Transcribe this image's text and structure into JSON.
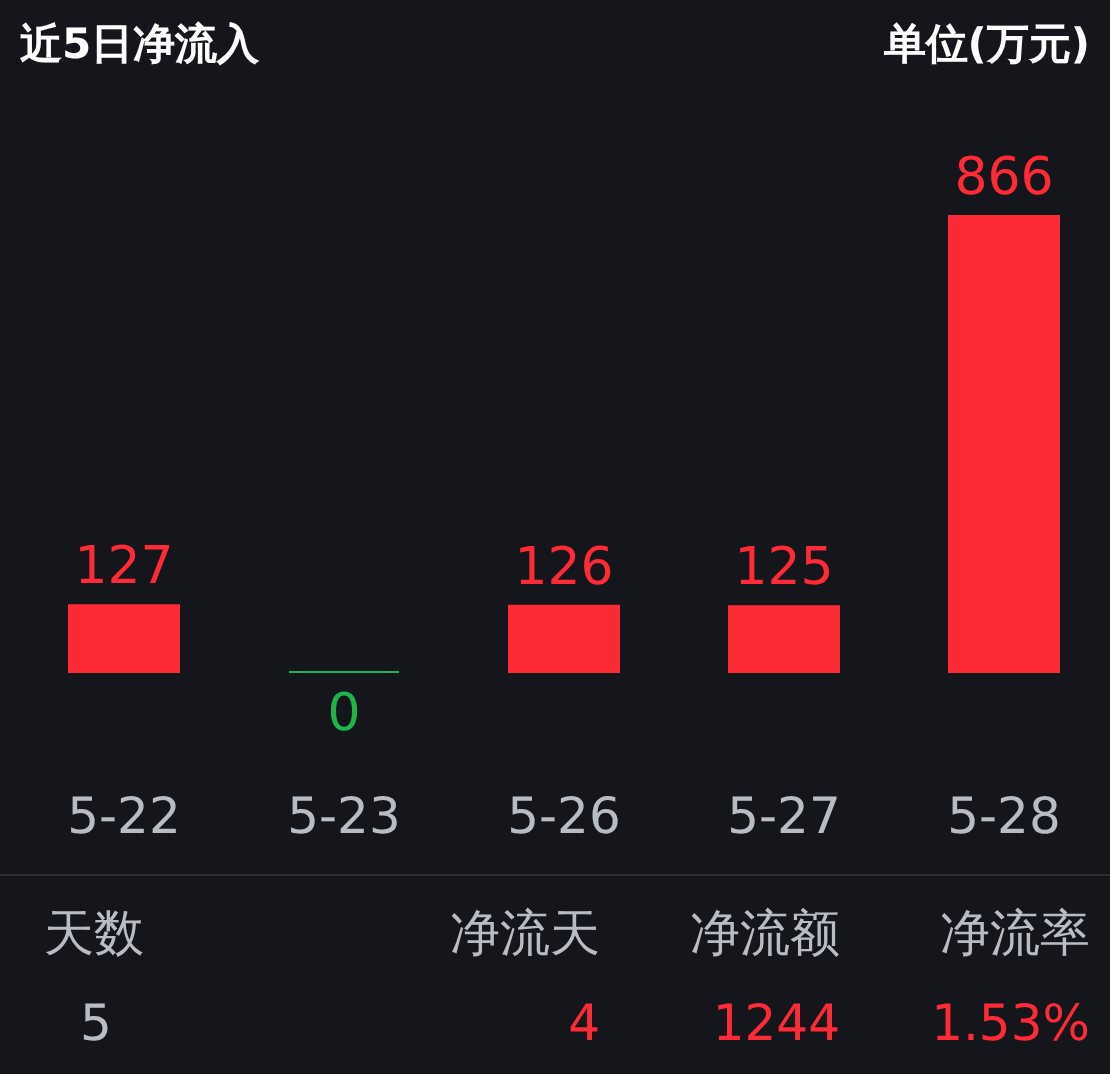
{
  "chart_data": {
    "type": "bar",
    "title": "近5日净流入",
    "categories": [
      "5-22",
      "5-23",
      "5-26",
      "5-27",
      "5-28"
    ],
    "values": [
      127,
      0,
      126,
      125,
      866
    ],
    "colors": [
      "#fe2b36",
      "#1fb54c",
      "#fe2b36",
      "#fe2b36",
      "#fe2b36"
    ],
    "data_labels": true,
    "annotations": [
      "单位(万元)",
      "天数",
      "净流天",
      "净流额",
      "净流率",
      "5",
      "4",
      "1244",
      "1.53%"
    ]
  }
}
